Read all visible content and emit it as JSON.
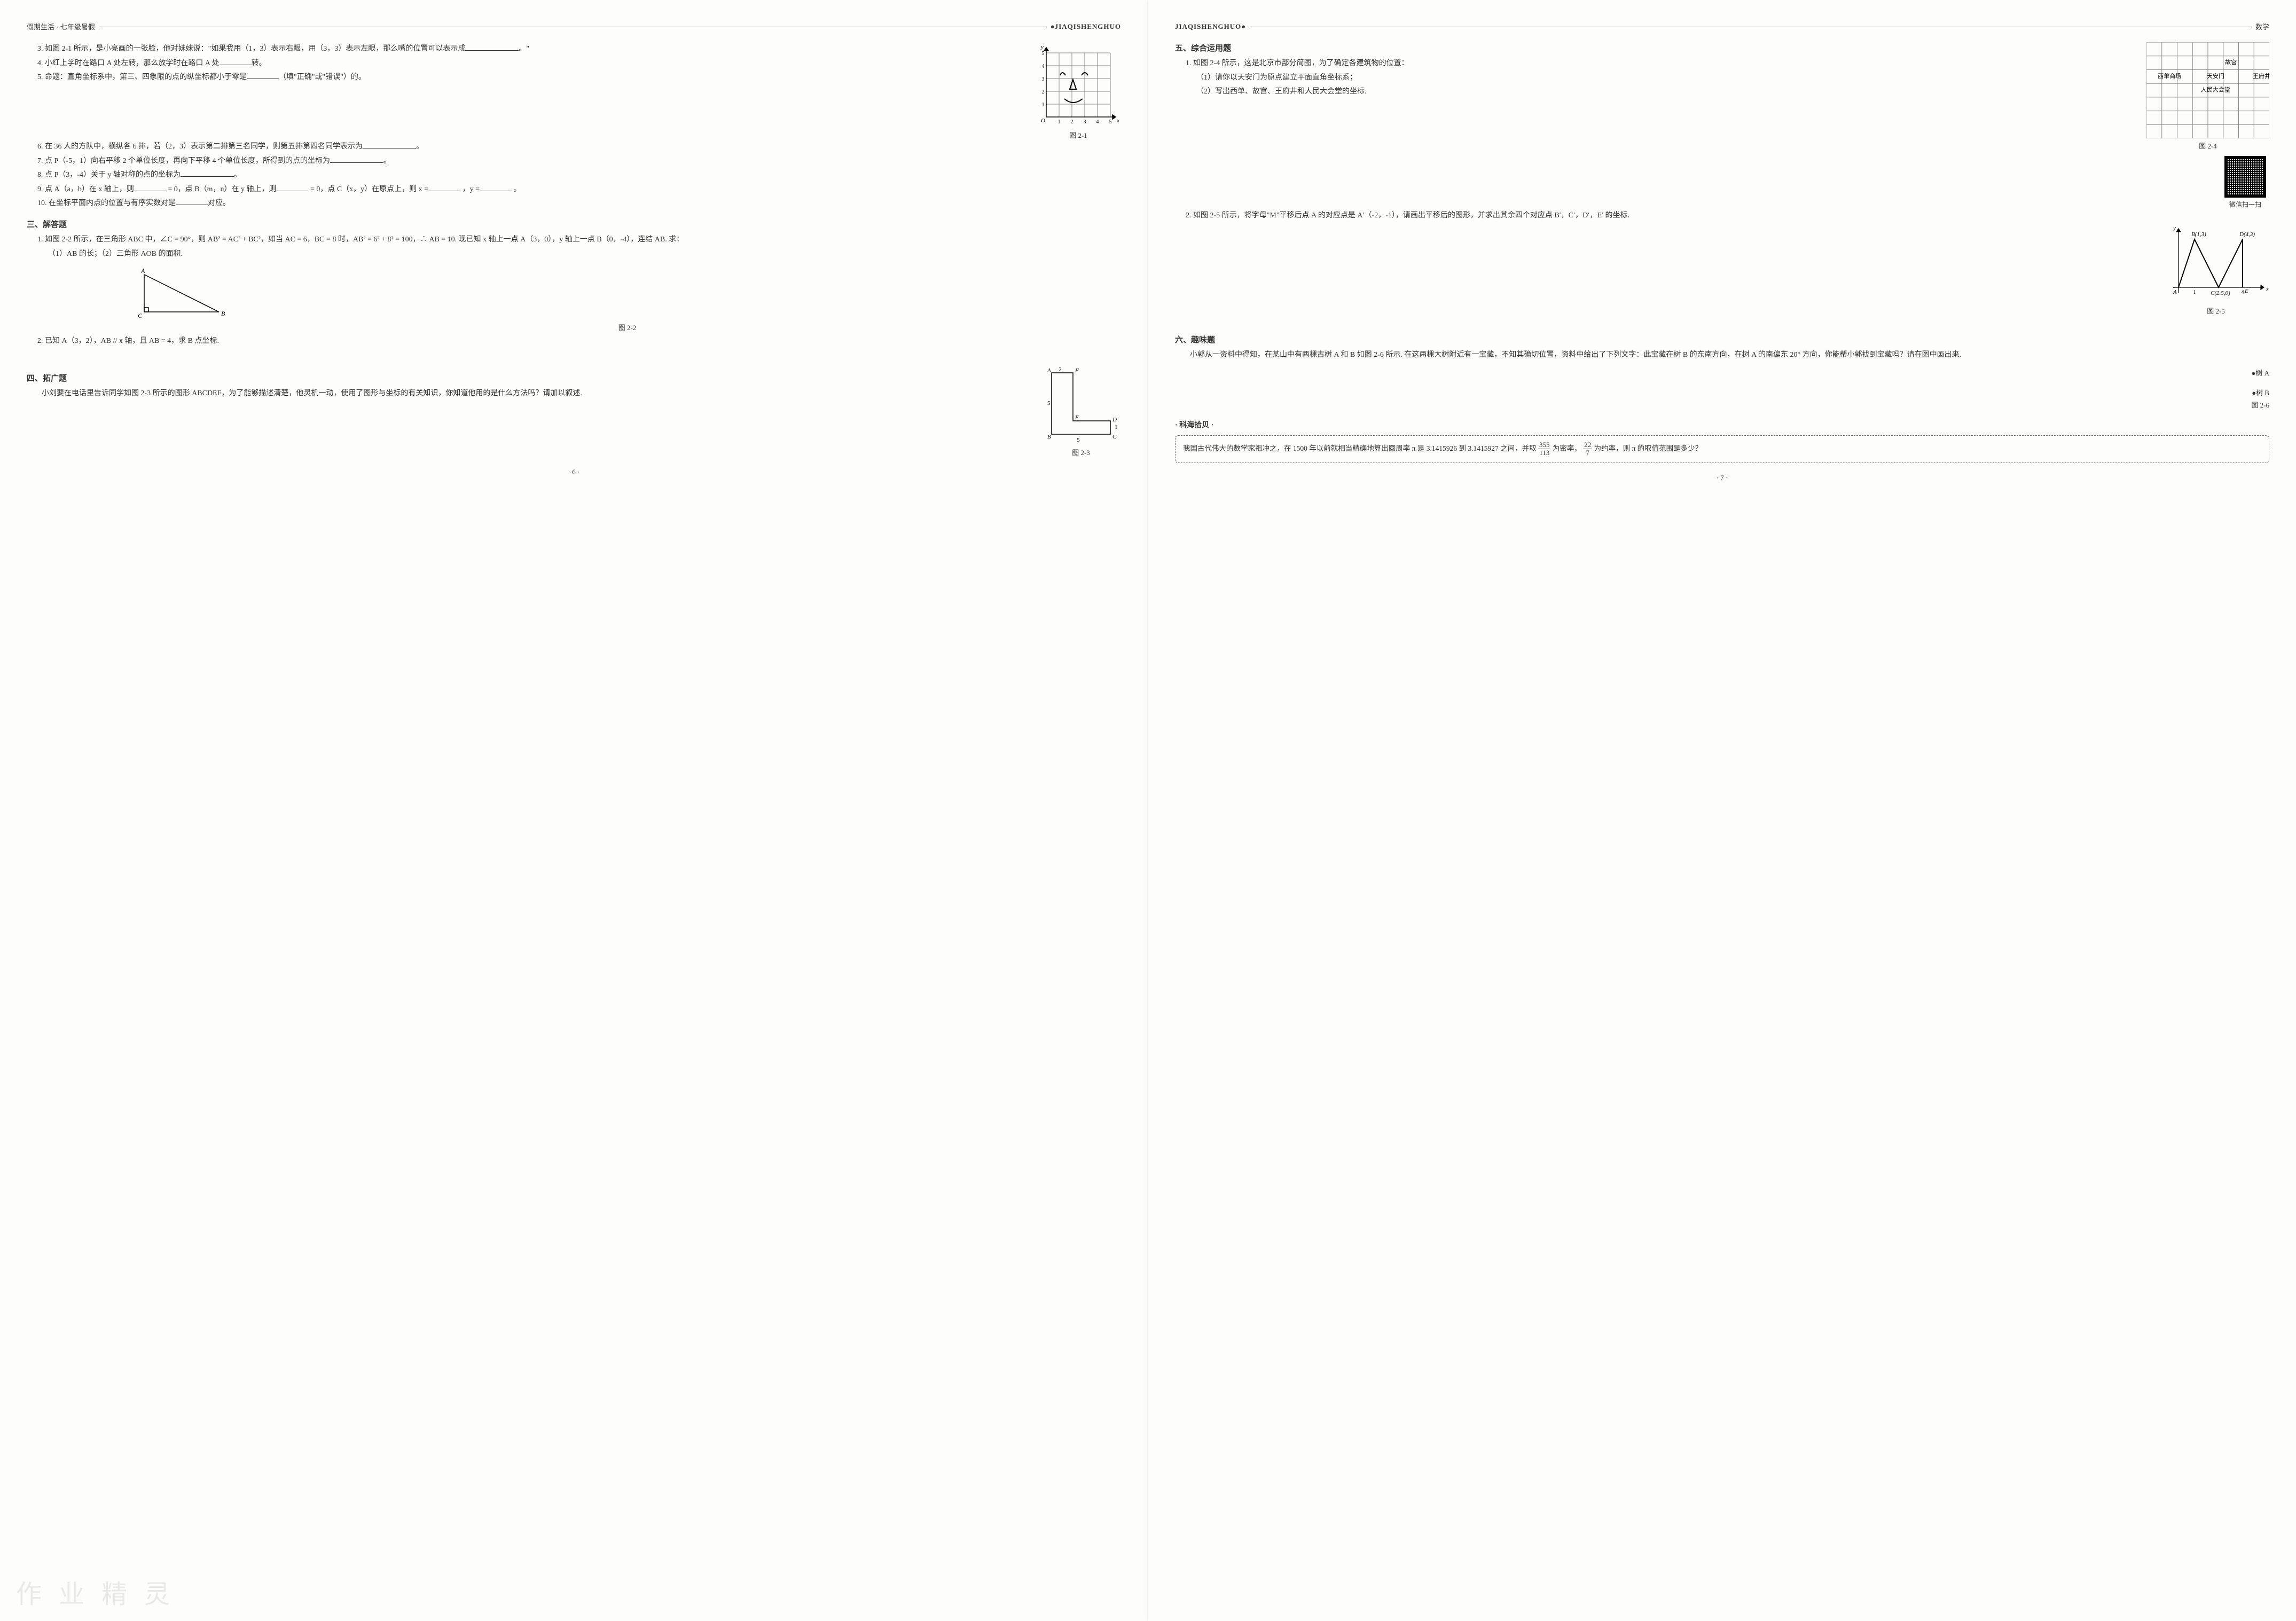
{
  "left": {
    "header_series": "假期生活 · 七年级暑假",
    "header_pinyin": "JIAQISHENGHUO",
    "q3": "3. 如图 2-1 所示，是小亮画的一张脸，他对妹妹说：\"如果我用（1，3）表示右眼，用（3，3）表示左眼，那么嘴的位置可以表示成",
    "q3_end": "。\"",
    "q4": "4. 小红上学时在路口 A 处左转，那么放学时在路口 A 处",
    "q4_end": "转。",
    "q5": "5. 命题：直角坐标系中，第三、四象限的点的纵坐标都小于零是",
    "q5_end": "（填\"正确\"或\"错误\"）的。",
    "q6": "6. 在 36 人的方队中，横纵各 6 排，若（2，3）表示第二排第三名同学，则第五排第四名同学表示为",
    "q6_end": "。",
    "q7": "7. 点 P（-5，1）向右平移 2 个单位长度，再向下平移 4 个单位长度，所得到的点的坐标为",
    "q7_end": "。",
    "q8": "8. 点 P（3，-4）关于 y 轴对称的点的坐标为",
    "q8_end": "。",
    "q9a": "9. 点 A（a，b）在 x 轴上，则",
    "q9b": "= 0，点 B（m，n）在 y 轴上，则",
    "q9c": "= 0，点 C（x，y）在原点上，则 x =",
    "q9d": "，y =",
    "q9e": "。",
    "q10": "10. 在坐标平面内点的位置与有序实数对是",
    "q10_end": "对应。",
    "sec3_title": "三、解答题",
    "s3q1a": "1. 如图 2-2 所示，在三角形 ABC 中，∠C = 90°，则 AB² = AC² + BC²，如当 AC = 6，BC = 8 时，AB² = 6² + 8² = 100，∴ AB = 10. 现已知 x 轴上一点 A（3，0），y 轴上一点 B（0，-4），连结 AB. 求：",
    "s3q1b": "（1）AB 的长；（2）三角形 AOB 的面积.",
    "s3q2": "2. 已知 A（3，2），AB // x 轴，且 AB = 4，求 B 点坐标.",
    "sec4_title": "四、拓广题",
    "s4_body": "小刘要在电话里告诉同学如图 2-3 所示的图形 ABCDEF，为了能够描述清楚，他灵机一动，使用了图形与坐标的有关知识，你知道他用的是什么方法吗？请加以叙述.",
    "fig21_caption": "图 2-1",
    "fig22_caption": "图 2-2",
    "fig23_caption": "图 2-3",
    "fig21": {
      "type": "grid-face",
      "xmax": 5,
      "ymax": 5,
      "grid_color": "#888",
      "axis_color": "#000",
      "right_eye": [
        1.2,
        3.1
      ],
      "left_eye": [
        3,
        3.1
      ],
      "nose": [
        2,
        2.2
      ],
      "mouth_y": 1.5
    },
    "fig22": {
      "type": "right-triangle",
      "A": "A",
      "B": "B",
      "C": "C",
      "line_color": "#000"
    },
    "fig23": {
      "type": "L-shape",
      "labels": {
        "A": "A",
        "B": "B",
        "C": "C",
        "D": "D",
        "E": "E",
        "F": "F"
      },
      "dims": {
        "AF": 2,
        "AB_side": 5,
        "BC": 5,
        "ED": 1,
        "CD_side": 1
      },
      "line_color": "#000"
    },
    "page_num": "· 6 ·",
    "watermark": "作 业 精 灵"
  },
  "right": {
    "header_pinyin": "JIAQISHENGHUO",
    "header_subject": "数学",
    "sec5_title": "五、综合运用题",
    "s5q1": "1. 如图 2-4 所示，这是北京市部分简图，为了确定各建筑物的位置：",
    "s5q1_1": "（1）请你以天安门为原点建立平面直角坐标系；",
    "s5q1_2": "（2）写出西单、故宫、王府井和人民大会堂的坐标.",
    "s5q2": "2. 如图 2-5 所示，将字母\"M\"平移后点 A 的对应点是 A′（-2，-1），请画出平移后的图形，并求出其余四个对应点 B′，C′，D′，E′ 的坐标.",
    "sec6_title": "六、趣味题",
    "s6_body": "小郭从一资料中得知，在某山中有两棵古树 A 和 B 如图 2-6 所示. 在这两棵大树附近有一宝藏，不知其确切位置，资料中给出了下列文字：此宝藏在树 B 的东南方向，在树 A 的南偏东 20° 方向，你能帮小郭找到宝藏吗？请在图中画出来.",
    "treeA": "●树 A",
    "treeB": "●树 B",
    "fig24_caption": "图 2-4",
    "fig25_caption": "图 2-5",
    "fig26_caption": "图 2-6",
    "qr_label": "微信扫一扫",
    "callout_title": "· 科海拾贝 ·",
    "callout_a": "我国古代伟大的数学家祖冲之，在 1500 年以前就相当精确地算出圆周率 π 是 3.1415926 到 3.1415927 之间，并取",
    "callout_b": "为密率，",
    "callout_c": "为约率，则 π 的取值范围是多少？",
    "frac1_num": "355",
    "frac1_den": "113",
    "frac2_num": "22",
    "frac2_den": "7",
    "fig24": {
      "type": "map-grid",
      "cols": 8,
      "rows": 7,
      "grid_color": "#888",
      "labels": [
        {
          "text": "故宫",
          "col": 5,
          "row": 1
        },
        {
          "text": "西单商场",
          "col": 1,
          "row": 2
        },
        {
          "text": "天安门",
          "col": 4,
          "row": 2
        },
        {
          "text": "王府井",
          "col": 7,
          "row": 2
        },
        {
          "text": "人民大会堂",
          "col": 4,
          "row": 3
        }
      ],
      "label_fontsize": 11
    },
    "fig25": {
      "type": "M-letter",
      "points": {
        "A": [
          0,
          0
        ],
        "B": [
          1,
          3
        ],
        "C": [
          2.5,
          0
        ],
        "D": [
          4,
          3
        ],
        "E": [
          4,
          0
        ]
      },
      "labels": {
        "A": "A",
        "B": "B(1,3)",
        "C": "C(2.5,0)",
        "D": "D(4,3)",
        "E": "E"
      },
      "axis_ticks_x": [
        1,
        4
      ],
      "line_color": "#000",
      "axis_color": "#000"
    },
    "page_num": "· 7 ·"
  }
}
